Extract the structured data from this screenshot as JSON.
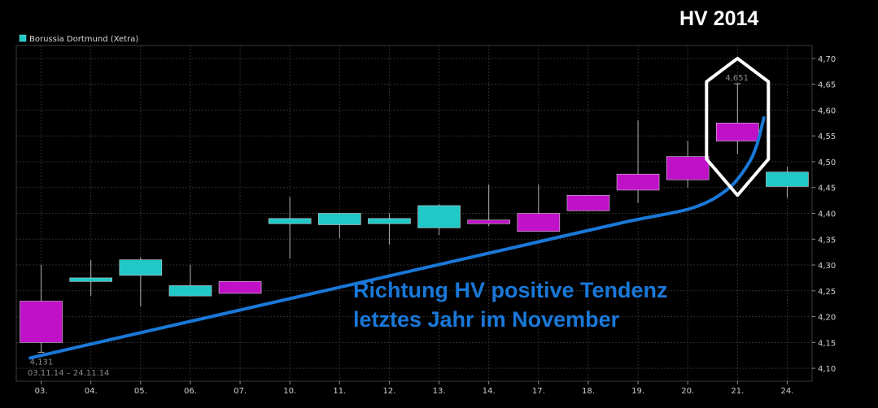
{
  "chart_data": {
    "type": "candlestick",
    "title": "HV 2014",
    "legend": {
      "label": "Borussia Dortmund (Xetra)",
      "color": "#20c8c8",
      "placement": "top-left"
    },
    "date_range": "03.11.14 – 24.11.14",
    "categories": [
      "03.",
      "04.",
      "05.",
      "06.",
      "07.",
      "10.",
      "11.",
      "12.",
      "13.",
      "14.",
      "17.",
      "18.",
      "19.",
      "20.",
      "21.",
      "24."
    ],
    "ohlc": [
      {
        "open": 4.23,
        "high": 4.3,
        "low": 4.131,
        "close": 4.15
      },
      {
        "open": 4.268,
        "high": 4.31,
        "low": 4.24,
        "close": 4.275
      },
      {
        "open": 4.28,
        "high": 4.315,
        "low": 4.22,
        "close": 4.31
      },
      {
        "open": 4.24,
        "high": 4.3,
        "low": 4.24,
        "close": 4.26
      },
      {
        "open": 4.268,
        "high": 4.268,
        "low": 4.245,
        "close": 4.245
      },
      {
        "open": 4.38,
        "high": 4.432,
        "low": 4.312,
        "close": 4.39
      },
      {
        "open": 4.378,
        "high": 4.4,
        "low": 4.352,
        "close": 4.4
      },
      {
        "open": 4.38,
        "high": 4.4,
        "low": 4.34,
        "close": 4.39
      },
      {
        "open": 4.372,
        "high": 4.418,
        "low": 4.358,
        "close": 4.415
      },
      {
        "open": 4.387,
        "high": 4.456,
        "low": 4.375,
        "close": 4.38
      },
      {
        "open": 4.4,
        "high": 4.456,
        "low": 4.365,
        "close": 4.365
      },
      {
        "open": 4.435,
        "high": 4.435,
        "low": 4.405,
        "close": 4.405
      },
      {
        "open": 4.476,
        "high": 4.58,
        "low": 4.42,
        "close": 4.445
      },
      {
        "open": 4.51,
        "high": 4.54,
        "low": 4.45,
        "close": 4.465
      },
      {
        "open": 4.575,
        "high": 4.651,
        "low": 4.515,
        "close": 4.54
      },
      {
        "open": 4.452,
        "high": 4.49,
        "low": 4.43,
        "close": 4.48
      }
    ],
    "point_labels": {
      "high": "4,651",
      "low": "4,131"
    },
    "ylim": [
      4.075,
      4.725
    ],
    "yticks": [
      "4,10",
      "4,15",
      "4,20",
      "4,25",
      "4,30",
      "4,35",
      "4,40",
      "4,45",
      "4,50",
      "4,55",
      "4,60",
      "4,65",
      "4,70"
    ],
    "ytick_values": [
      4.1,
      4.15,
      4.2,
      4.25,
      4.3,
      4.35,
      4.4,
      4.45,
      4.5,
      4.55,
      4.6,
      4.65,
      4.7
    ],
    "y_axis_position": "right",
    "grid": true,
    "colors": {
      "up": "#20c8c8",
      "down": "#c010c8",
      "wick": "#b0b0b0",
      "trend": "#1a78d8",
      "highlight": "#ffffff"
    },
    "trend_line": {
      "x": [
        0,
        2.0,
        4.0,
        6.0,
        8.0,
        10.0,
        12.0,
        13.3,
        14.0,
        14.4,
        14.6,
        14.75
      ],
      "y": [
        4.12,
        4.164,
        4.208,
        4.252,
        4.296,
        4.34,
        4.384,
        4.41,
        4.445,
        4.49,
        4.53,
        4.585
      ]
    },
    "highlight_index": 14,
    "annotations": [
      "Richtung HV positive Tendenz",
      "letztes Jahr im November"
    ]
  }
}
